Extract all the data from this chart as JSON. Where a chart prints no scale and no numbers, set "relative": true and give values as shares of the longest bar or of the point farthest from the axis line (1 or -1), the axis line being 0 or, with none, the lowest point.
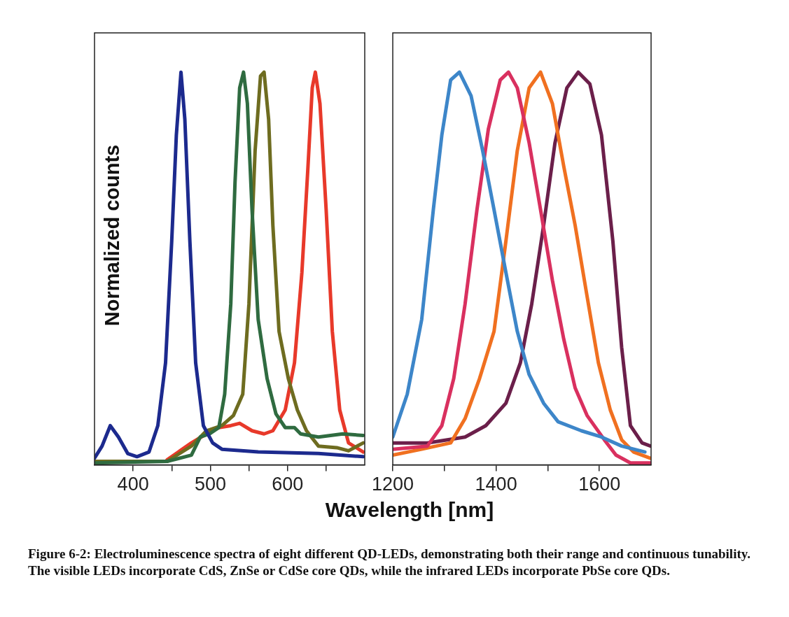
{
  "chart_data": [
    {
      "type": "line",
      "relative": true,
      "ylabel": "Normalized counts",
      "xlabel": "Wavelength [nm]",
      "xlim": [
        350,
        700
      ],
      "xticks": [
        {
          "value": 450,
          "label": null
        },
        400,
        500,
        {
          "value": 550,
          "label": null
        },
        600,
        {
          "value": 650,
          "label": null
        }
      ],
      "tick_labels": "x",
      "legend": false,
      "annotations": [
        "Figure 6-2: Electroluminescence spectra of eight different QD-LEDs, demonstrating both their range and continuous tunability.  The visible LEDs incorporate CdS, ZnSe or CdSe core QDs, while the infrared LEDs incorporate PbSe core QDs."
      ],
      "series": [
        {
          "color": "#1c2a8e",
          "x": [
            350,
            359.8,
            370.4,
            381,
            393,
            405,
            420.6,
            432,
            442,
            450,
            456,
            462,
            467,
            473.5,
            481,
            491,
            503,
            515,
            562,
            640,
            698
          ],
          "values": [
            0.017,
            0.048,
            0.1,
            0.071,
            0.029,
            0.021,
            0.033,
            0.1,
            0.26,
            0.57,
            0.84,
            1.0,
            0.88,
            0.57,
            0.26,
            0.1,
            0.056,
            0.04,
            0.033,
            0.029,
            0.021
          ]
        },
        {
          "color": "#2f6b40",
          "x": [
            350,
            444,
            475.5,
            487,
            499,
            511,
            518.6,
            526.5,
            532,
            538,
            543,
            548,
            554,
            562,
            573.5,
            585,
            597,
            609,
            617,
            640,
            671.5,
            698
          ],
          "values": [
            0.005,
            0.009,
            0.025,
            0.071,
            0.079,
            0.095,
            0.18,
            0.41,
            0.72,
            0.96,
            1.0,
            0.92,
            0.65,
            0.37,
            0.22,
            0.13,
            0.095,
            0.095,
            0.079,
            0.071,
            0.079,
            0.075
          ]
        },
        {
          "color": "#6e6c20",
          "x": [
            350,
            444,
            475.5,
            495,
            515,
            530,
            542,
            550,
            558,
            565,
            569.6,
            575.5,
            581,
            589,
            601,
            612.7,
            624.5,
            640,
            663.7,
            679,
            698
          ],
          "values": [
            0.009,
            0.009,
            0.048,
            0.087,
            0.1,
            0.126,
            0.18,
            0.41,
            0.8,
            0.99,
            1.0,
            0.88,
            0.61,
            0.34,
            0.22,
            0.14,
            0.087,
            0.048,
            0.044,
            0.036,
            0.056
          ]
        },
        {
          "color": "#e8392a",
          "x": [
            444,
            475.5,
            495,
            511,
            526.5,
            538,
            554,
            569.6,
            581,
            597,
            609,
            618.6,
            626.5,
            632,
            636,
            642,
            650,
            658,
            667.6,
            679,
            698
          ],
          "values": [
            0.013,
            0.056,
            0.079,
            0.095,
            0.1,
            0.106,
            0.087,
            0.079,
            0.087,
            0.14,
            0.26,
            0.49,
            0.76,
            0.96,
            1.0,
            0.92,
            0.65,
            0.34,
            0.14,
            0.056,
            0.033
          ]
        }
      ]
    },
    {
      "type": "line",
      "relative": true,
      "xlim": [
        1200,
        1700
      ],
      "xticks": [
        1200,
        {
          "value": 1300,
          "label": null
        },
        1400,
        {
          "value": 1500,
          "label": null
        },
        1600
      ],
      "tick_labels": "x",
      "legend": false,
      "series": [
        {
          "color": "#3d86c9",
          "x": [
            1200,
            1228,
            1256,
            1278.5,
            1295,
            1312,
            1329,
            1351.5,
            1374,
            1396,
            1419,
            1441,
            1464,
            1492,
            1520,
            1565,
            1604,
            1643,
            1688
          ],
          "values": [
            0.071,
            0.18,
            0.37,
            0.65,
            0.84,
            0.98,
            1.0,
            0.94,
            0.8,
            0.65,
            0.49,
            0.34,
            0.23,
            0.157,
            0.11,
            0.087,
            0.071,
            0.048,
            0.033
          ]
        },
        {
          "color": "#d9305f",
          "x": [
            1200,
            1267,
            1295,
            1318,
            1340,
            1363,
            1385,
            1408,
            1424,
            1441,
            1464,
            1486,
            1509,
            1531,
            1553,
            1576,
            1609.5,
            1632,
            1660,
            1699
          ],
          "values": [
            0.04,
            0.048,
            0.1,
            0.22,
            0.41,
            0.65,
            0.855,
            0.98,
            1.0,
            0.96,
            0.82,
            0.65,
            0.47,
            0.32,
            0.196,
            0.126,
            0.064,
            0.025,
            0.005,
            0.005
          ]
        },
        {
          "color": "#f07020",
          "x": [
            1200,
            1256,
            1312,
            1340,
            1368,
            1396,
            1419,
            1441,
            1464,
            1486,
            1509,
            1531,
            1553,
            1576,
            1598,
            1621,
            1643,
            1666,
            1699
          ],
          "values": [
            0.025,
            0.04,
            0.056,
            0.118,
            0.22,
            0.34,
            0.57,
            0.8,
            0.96,
            1.0,
            0.92,
            0.76,
            0.61,
            0.43,
            0.26,
            0.14,
            0.064,
            0.033,
            0.017
          ]
        },
        {
          "color": "#6b1f4a",
          "x": [
            1200,
            1267,
            1340,
            1380,
            1419,
            1447,
            1469,
            1492,
            1514,
            1537,
            1559,
            1581.5,
            1604,
            1626,
            1643,
            1660,
            1682.5,
            1699
          ],
          "values": [
            0.056,
            0.056,
            0.071,
            0.1,
            0.157,
            0.26,
            0.41,
            0.61,
            0.82,
            0.96,
            1.0,
            0.97,
            0.84,
            0.57,
            0.3,
            0.1,
            0.056,
            0.048
          ]
        }
      ]
    }
  ]
}
